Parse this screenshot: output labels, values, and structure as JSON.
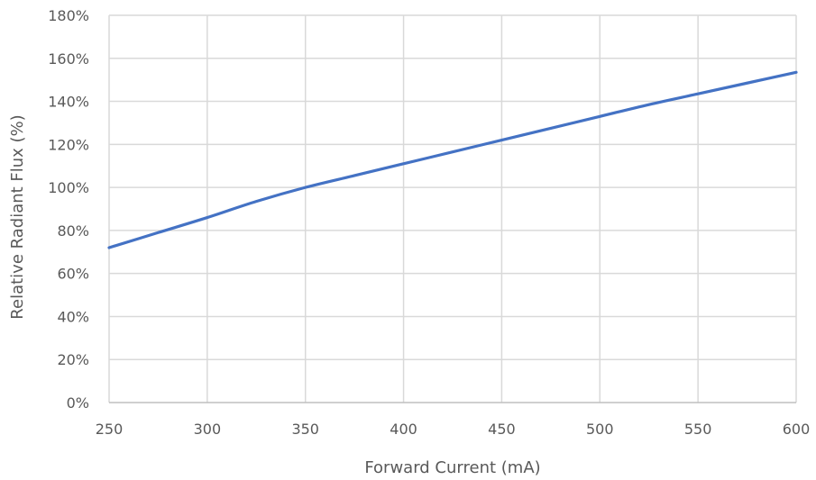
{
  "chart_data": {
    "type": "line",
    "title": "",
    "xlabel": "Forward Current (mA)",
    "ylabel": "Relative Radiant Flux (%)",
    "xlim": [
      250,
      600
    ],
    "ylim": [
      0,
      180
    ],
    "x_ticks": [
      "250",
      "300",
      "350",
      "400",
      "450",
      "500",
      "550",
      "600"
    ],
    "y_ticks": [
      "0%",
      "20%",
      "40%",
      "60%",
      "80%",
      "100%",
      "120%",
      "140%",
      "160%",
      "180%"
    ],
    "grid": true,
    "legend": "none",
    "series": [
      {
        "color": "#4472c4",
        "x": [
          250,
          275,
          300,
          325,
          350,
          375,
          400,
          425,
          450,
          475,
          500,
          525,
          550,
          575,
          600
        ],
        "y": [
          72,
          79,
          86,
          93.5,
          100,
          105.5,
          111,
          116.5,
          122,
          127.5,
          133,
          138.5,
          143.5,
          148.5,
          153.5
        ]
      }
    ]
  }
}
